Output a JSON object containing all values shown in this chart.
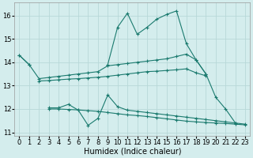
{
  "xlabel": "Humidex (Indice chaleur)",
  "x": [
    0,
    1,
    2,
    3,
    4,
    5,
    6,
    7,
    8,
    9,
    10,
    11,
    12,
    13,
    14,
    15,
    16,
    17,
    18,
    19,
    20,
    21,
    22,
    23
  ],
  "y_max": [
    14.3,
    13.9,
    null,
    null,
    null,
    null,
    null,
    null,
    null,
    13.9,
    15.5,
    16.1,
    15.2,
    15.5,
    15.85,
    16.05,
    16.2,
    14.8,
    14.1,
    13.5,
    12.5,
    12.0,
    11.4,
    null
  ],
  "y_mean_max": [
    14.3,
    13.9,
    13.3,
    13.35,
    13.4,
    13.45,
    13.5,
    13.55,
    13.6,
    13.85,
    13.9,
    13.95,
    14.0,
    14.05,
    14.1,
    14.15,
    14.25,
    14.35,
    14.1,
    13.5,
    null,
    null,
    null,
    null
  ],
  "y_mean": [
    null,
    null,
    13.2,
    13.22,
    13.25,
    13.28,
    13.3,
    13.33,
    13.36,
    13.4,
    13.45,
    13.5,
    13.55,
    13.6,
    13.62,
    13.65,
    13.68,
    13.72,
    13.55,
    13.42,
    null,
    null,
    null,
    null
  ],
  "y_mean_min": [
    null,
    null,
    null,
    12.0,
    12.0,
    11.98,
    11.96,
    11.93,
    11.9,
    11.85,
    11.8,
    11.75,
    11.72,
    11.68,
    11.63,
    11.58,
    11.53,
    11.48,
    11.45,
    11.42,
    11.4,
    11.38,
    11.35,
    11.32
  ],
  "y_min": [
    null,
    null,
    null,
    12.05,
    12.05,
    12.2,
    11.95,
    11.3,
    11.6,
    12.6,
    12.1,
    11.95,
    11.9,
    11.85,
    11.8,
    11.75,
    11.7,
    11.65,
    11.6,
    11.55,
    11.5,
    11.45,
    11.4,
    11.35
  ],
  "bg_color": "#d4eded",
  "grid_color": "#b8d8d8",
  "line_color": "#1a7a6e",
  "ylim": [
    10.85,
    16.55
  ],
  "xlim": [
    -0.5,
    23.5
  ],
  "yticks": [
    11,
    12,
    13,
    14,
    15,
    16
  ],
  "xticks": [
    0,
    1,
    2,
    3,
    4,
    5,
    6,
    7,
    8,
    9,
    10,
    11,
    12,
    13,
    14,
    15,
    16,
    17,
    18,
    19,
    20,
    21,
    22,
    23
  ]
}
